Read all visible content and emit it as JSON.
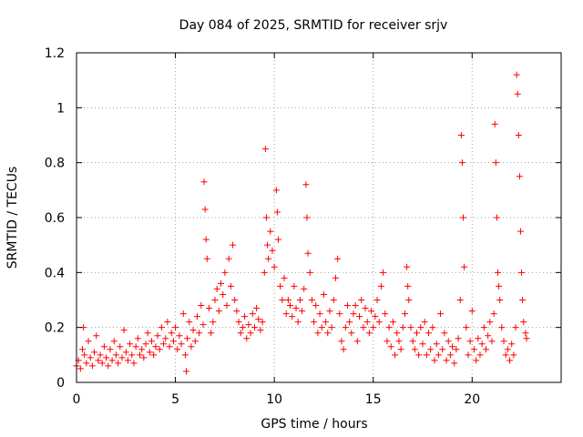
{
  "chart_data": {
    "type": "scatter",
    "title": "Day 084 of 2025, SRMTID for receiver srjv",
    "xlabel": "GPS time / hours",
    "ylabel": "SRMTID / TECUs",
    "xlim": [
      0,
      24.5
    ],
    "ylim": [
      0,
      1.2
    ],
    "xticks": [
      0,
      5,
      10,
      15,
      20
    ],
    "xtick_labels": [
      "0",
      "5",
      "10",
      "15",
      "20"
    ],
    "yticks": [
      0,
      0.2,
      0.4,
      0.6,
      0.8,
      1.0,
      1.2
    ],
    "ytick_labels": [
      "0",
      "0.2",
      "0.4",
      "0.6",
      "0.8",
      "1",
      "1.2"
    ],
    "grid": true,
    "marker": "+",
    "series": [
      {
        "name": "SRMTID",
        "color": "#ff0000",
        "points": [
          [
            0.0,
            0.06
          ],
          [
            0.1,
            0.08
          ],
          [
            0.2,
            0.05
          ],
          [
            0.3,
            0.12
          ],
          [
            0.35,
            0.2
          ],
          [
            0.4,
            0.1
          ],
          [
            0.5,
            0.07
          ],
          [
            0.6,
            0.15
          ],
          [
            0.7,
            0.09
          ],
          [
            0.8,
            0.06
          ],
          [
            0.9,
            0.11
          ],
          [
            1.0,
            0.17
          ],
          [
            1.1,
            0.08
          ],
          [
            1.2,
            0.1
          ],
          [
            1.3,
            0.07
          ],
          [
            1.4,
            0.13
          ],
          [
            1.5,
            0.09
          ],
          [
            1.6,
            0.06
          ],
          [
            1.7,
            0.12
          ],
          [
            1.8,
            0.08
          ],
          [
            1.9,
            0.15
          ],
          [
            2.0,
            0.1
          ],
          [
            2.1,
            0.07
          ],
          [
            2.2,
            0.13
          ],
          [
            2.3,
            0.09
          ],
          [
            2.4,
            0.19
          ],
          [
            2.5,
            0.11
          ],
          [
            2.6,
            0.08
          ],
          [
            2.7,
            0.14
          ],
          [
            2.8,
            0.1
          ],
          [
            2.9,
            0.07
          ],
          [
            3.0,
            0.13
          ],
          [
            3.1,
            0.16
          ],
          [
            3.2,
            0.1
          ],
          [
            3.3,
            0.12
          ],
          [
            3.4,
            0.09
          ],
          [
            3.5,
            0.14
          ],
          [
            3.6,
            0.18
          ],
          [
            3.7,
            0.11
          ],
          [
            3.8,
            0.15
          ],
          [
            3.9,
            0.1
          ],
          [
            4.0,
            0.13
          ],
          [
            4.1,
            0.17
          ],
          [
            4.2,
            0.12
          ],
          [
            4.3,
            0.2
          ],
          [
            4.4,
            0.14
          ],
          [
            4.5,
            0.16
          ],
          [
            4.6,
            0.22
          ],
          [
            4.7,
            0.13
          ],
          [
            4.8,
            0.18
          ],
          [
            4.9,
            0.15
          ],
          [
            5.0,
            0.2
          ],
          [
            5.1,
            0.12
          ],
          [
            5.2,
            0.17
          ],
          [
            5.3,
            0.14
          ],
          [
            5.4,
            0.25
          ],
          [
            5.5,
            0.1
          ],
          [
            5.55,
            0.04
          ],
          [
            5.6,
            0.16
          ],
          [
            5.7,
            0.22
          ],
          [
            5.8,
            0.13
          ],
          [
            5.9,
            0.19
          ],
          [
            6.0,
            0.15
          ],
          [
            6.1,
            0.24
          ],
          [
            6.2,
            0.18
          ],
          [
            6.3,
            0.28
          ],
          [
            6.4,
            0.21
          ],
          [
            6.45,
            0.73
          ],
          [
            6.5,
            0.63
          ],
          [
            6.55,
            0.52
          ],
          [
            6.6,
            0.45
          ],
          [
            6.7,
            0.27
          ],
          [
            6.8,
            0.18
          ],
          [
            6.9,
            0.22
          ],
          [
            7.0,
            0.3
          ],
          [
            7.1,
            0.34
          ],
          [
            7.2,
            0.26
          ],
          [
            7.3,
            0.36
          ],
          [
            7.4,
            0.32
          ],
          [
            7.5,
            0.4
          ],
          [
            7.6,
            0.28
          ],
          [
            7.7,
            0.45
          ],
          [
            7.8,
            0.35
          ],
          [
            7.9,
            0.5
          ],
          [
            8.0,
            0.3
          ],
          [
            8.1,
            0.26
          ],
          [
            8.2,
            0.22
          ],
          [
            8.3,
            0.18
          ],
          [
            8.4,
            0.2
          ],
          [
            8.5,
            0.24
          ],
          [
            8.6,
            0.16
          ],
          [
            8.7,
            0.21
          ],
          [
            8.8,
            0.18
          ],
          [
            8.9,
            0.25
          ],
          [
            9.0,
            0.2
          ],
          [
            9.1,
            0.27
          ],
          [
            9.2,
            0.23
          ],
          [
            9.3,
            0.19
          ],
          [
            9.4,
            0.22
          ],
          [
            9.5,
            0.4
          ],
          [
            9.55,
            0.85
          ],
          [
            9.6,
            0.6
          ],
          [
            9.65,
            0.5
          ],
          [
            9.7,
            0.45
          ],
          [
            9.8,
            0.55
          ],
          [
            9.9,
            0.48
          ],
          [
            10.0,
            0.42
          ],
          [
            10.1,
            0.7
          ],
          [
            10.15,
            0.62
          ],
          [
            10.2,
            0.52
          ],
          [
            10.3,
            0.35
          ],
          [
            10.4,
            0.3
          ],
          [
            10.5,
            0.38
          ],
          [
            10.6,
            0.25
          ],
          [
            10.7,
            0.3
          ],
          [
            10.8,
            0.28
          ],
          [
            10.9,
            0.24
          ],
          [
            11.0,
            0.35
          ],
          [
            11.1,
            0.27
          ],
          [
            11.2,
            0.22
          ],
          [
            11.3,
            0.3
          ],
          [
            11.4,
            0.26
          ],
          [
            11.5,
            0.34
          ],
          [
            11.6,
            0.72
          ],
          [
            11.65,
            0.6
          ],
          [
            11.7,
            0.47
          ],
          [
            11.8,
            0.4
          ],
          [
            11.9,
            0.3
          ],
          [
            12.0,
            0.22
          ],
          [
            12.1,
            0.28
          ],
          [
            12.2,
            0.18
          ],
          [
            12.3,
            0.25
          ],
          [
            12.4,
            0.2
          ],
          [
            12.5,
            0.32
          ],
          [
            12.6,
            0.22
          ],
          [
            12.7,
            0.18
          ],
          [
            12.8,
            0.26
          ],
          [
            12.9,
            0.2
          ],
          [
            13.0,
            0.3
          ],
          [
            13.1,
            0.38
          ],
          [
            13.2,
            0.45
          ],
          [
            13.3,
            0.25
          ],
          [
            13.4,
            0.15
          ],
          [
            13.5,
            0.12
          ],
          [
            13.6,
            0.2
          ],
          [
            13.7,
            0.28
          ],
          [
            13.8,
            0.22
          ],
          [
            13.9,
            0.18
          ],
          [
            14.0,
            0.25
          ],
          [
            14.1,
            0.28
          ],
          [
            14.2,
            0.15
          ],
          [
            14.3,
            0.24
          ],
          [
            14.4,
            0.3
          ],
          [
            14.5,
            0.2
          ],
          [
            14.6,
            0.27
          ],
          [
            14.7,
            0.22
          ],
          [
            14.8,
            0.18
          ],
          [
            14.9,
            0.26
          ],
          [
            15.0,
            0.2
          ],
          [
            15.1,
            0.24
          ],
          [
            15.2,
            0.3
          ],
          [
            15.3,
            0.22
          ],
          [
            15.4,
            0.35
          ],
          [
            15.5,
            0.4
          ],
          [
            15.6,
            0.25
          ],
          [
            15.7,
            0.15
          ],
          [
            15.8,
            0.2
          ],
          [
            15.9,
            0.13
          ],
          [
            16.0,
            0.22
          ],
          [
            16.1,
            0.1
          ],
          [
            16.2,
            0.18
          ],
          [
            16.3,
            0.15
          ],
          [
            16.4,
            0.12
          ],
          [
            16.5,
            0.2
          ],
          [
            16.6,
            0.25
          ],
          [
            16.7,
            0.42
          ],
          [
            16.75,
            0.35
          ],
          [
            16.8,
            0.3
          ],
          [
            16.9,
            0.2
          ],
          [
            17.0,
            0.15
          ],
          [
            17.1,
            0.12
          ],
          [
            17.2,
            0.18
          ],
          [
            17.3,
            0.1
          ],
          [
            17.4,
            0.2
          ],
          [
            17.5,
            0.14
          ],
          [
            17.6,
            0.22
          ],
          [
            17.7,
            0.1
          ],
          [
            17.8,
            0.18
          ],
          [
            17.9,
            0.12
          ],
          [
            18.0,
            0.2
          ],
          [
            18.1,
            0.08
          ],
          [
            18.2,
            0.14
          ],
          [
            18.3,
            0.1
          ],
          [
            18.4,
            0.25
          ],
          [
            18.5,
            0.12
          ],
          [
            18.6,
            0.18
          ],
          [
            18.7,
            0.08
          ],
          [
            18.8,
            0.15
          ],
          [
            18.9,
            0.1
          ],
          [
            19.0,
            0.13
          ],
          [
            19.1,
            0.07
          ],
          [
            19.2,
            0.12
          ],
          [
            19.3,
            0.16
          ],
          [
            19.4,
            0.3
          ],
          [
            19.45,
            0.9
          ],
          [
            19.5,
            0.8
          ],
          [
            19.55,
            0.6
          ],
          [
            19.6,
            0.42
          ],
          [
            19.7,
            0.2
          ],
          [
            19.8,
            0.1
          ],
          [
            19.9,
            0.15
          ],
          [
            20.0,
            0.26
          ],
          [
            20.1,
            0.12
          ],
          [
            20.2,
            0.08
          ],
          [
            20.3,
            0.16
          ],
          [
            20.4,
            0.1
          ],
          [
            20.5,
            0.14
          ],
          [
            20.6,
            0.2
          ],
          [
            20.7,
            0.12
          ],
          [
            20.8,
            0.17
          ],
          [
            20.9,
            0.22
          ],
          [
            21.0,
            0.15
          ],
          [
            21.1,
            0.25
          ],
          [
            21.15,
            0.94
          ],
          [
            21.2,
            0.8
          ],
          [
            21.25,
            0.6
          ],
          [
            21.3,
            0.4
          ],
          [
            21.35,
            0.35
          ],
          [
            21.4,
            0.3
          ],
          [
            21.5,
            0.2
          ],
          [
            21.6,
            0.15
          ],
          [
            21.7,
            0.1
          ],
          [
            21.8,
            0.12
          ],
          [
            21.9,
            0.08
          ],
          [
            22.0,
            0.14
          ],
          [
            22.1,
            0.1
          ],
          [
            22.2,
            0.2
          ],
          [
            22.25,
            1.12
          ],
          [
            22.3,
            1.05
          ],
          [
            22.35,
            0.9
          ],
          [
            22.4,
            0.75
          ],
          [
            22.45,
            0.55
          ],
          [
            22.5,
            0.4
          ],
          [
            22.55,
            0.3
          ],
          [
            22.6,
            0.22
          ],
          [
            22.7,
            0.18
          ],
          [
            22.75,
            0.16
          ]
        ]
      }
    ]
  }
}
